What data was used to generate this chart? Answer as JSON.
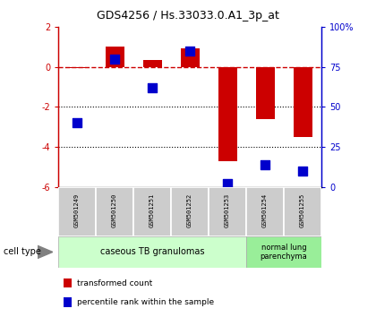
{
  "title": "GDS4256 / Hs.33033.0.A1_3p_at",
  "samples": [
    "GSM501249",
    "GSM501250",
    "GSM501251",
    "GSM501252",
    "GSM501253",
    "GSM501254",
    "GSM501255"
  ],
  "transformed_count": [
    -0.05,
    1.0,
    0.35,
    0.95,
    -4.7,
    -2.6,
    -3.5
  ],
  "percentile_rank": [
    40,
    80,
    62,
    85,
    2,
    14,
    10
  ],
  "ylim_left": [
    -6,
    2
  ],
  "ylim_right": [
    0,
    100
  ],
  "yticks_left": [
    -6,
    -4,
    -2,
    0,
    2
  ],
  "yticks_right": [
    0,
    25,
    50,
    75,
    100
  ],
  "ytick_labels_right": [
    "0",
    "25",
    "50",
    "75",
    "100%"
  ],
  "bar_color": "#cc0000",
  "square_color": "#0000cc",
  "dotted_lines": [
    -2,
    -4
  ],
  "group1_label": "caseous TB granulomas",
  "group2_label": "normal lung\nparenchyma",
  "group1_color": "#ccffcc",
  "group2_color": "#99ee99",
  "sample_box_color": "#cccccc",
  "legend_bar_label": "transformed count",
  "legend_sq_label": "percentile rank within the sample",
  "cell_type_label": "cell type"
}
